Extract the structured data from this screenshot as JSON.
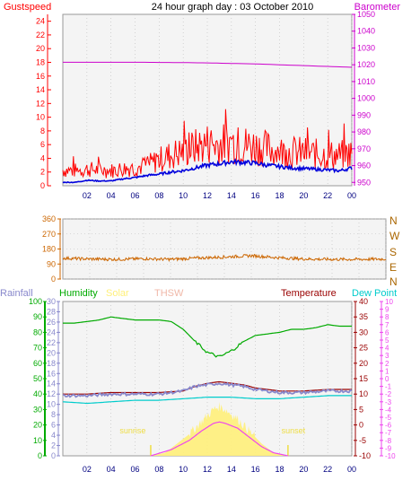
{
  "title": "24 hour graph day : 03 October 2010",
  "colors": {
    "gust": "#ff0000",
    "wind": "#0000dd",
    "baro": "#cc00cc",
    "dir": "#cc6600",
    "compass": "#aa6600",
    "humidity": "#00aa00",
    "solar": "#fff07a",
    "solar_text": "#eedd44",
    "thsw": "#f0b8a8",
    "temperature": "#990000",
    "dewpoint": "#00cccc",
    "rain": "#8888cc",
    "uv": "#ee44ee",
    "grid": "#bbbbbb",
    "plot_bg": "#f4f4f4"
  },
  "chart_data": [
    {
      "type": "line",
      "title": "24 hour graph day : 03 October 2010",
      "x_ticks": [
        "02",
        "04",
        "06",
        "08",
        "10",
        "12",
        "14",
        "16",
        "18",
        "20",
        "22",
        "00"
      ],
      "grid": true,
      "left_axis": {
        "label": "Gustspeed",
        "range": [
          0,
          25
        ],
        "ticks": [
          "0",
          "2",
          "4",
          "6",
          "8",
          "10",
          "12",
          "14",
          "16",
          "18",
          "20",
          "22",
          "24"
        ]
      },
      "right_axis": {
        "label": "Barometer",
        "range": [
          948,
          1050
        ],
        "ticks": [
          "950",
          "960",
          "970",
          "980",
          "990",
          "1000",
          "1010",
          "1020",
          "1030",
          "1040",
          "1050"
        ]
      },
      "series": [
        {
          "name": "Gustspeed",
          "axis": "left",
          "x": [
            0,
            1,
            2,
            3,
            4,
            5,
            6,
            7,
            8,
            9,
            10,
            11,
            12,
            13,
            14,
            15,
            16,
            17,
            18,
            19,
            20,
            21,
            22,
            23,
            24
          ],
          "values": [
            2.3,
            2.2,
            2.4,
            2.3,
            2.2,
            2.5,
            2.6,
            3.0,
            3.8,
            4.5,
            5.0,
            5.6,
            6.2,
            6.0,
            6.3,
            6.0,
            5.8,
            5.4,
            5.0,
            4.9,
            4.8,
            4.6,
            4.5,
            4.4,
            4.8
          ]
        },
        {
          "name": "Windspeed",
          "axis": "left",
          "x": [
            0,
            1,
            2,
            3,
            4,
            5,
            6,
            7,
            8,
            9,
            10,
            11,
            12,
            13,
            14,
            15,
            16,
            17,
            18,
            19,
            20,
            21,
            22,
            23,
            24
          ],
          "values": [
            0.5,
            0.5,
            0.8,
            0.7,
            0.7,
            1.0,
            1.2,
            1.5,
            1.7,
            2.0,
            2.2,
            2.6,
            3.0,
            3.2,
            3.5,
            3.4,
            3.3,
            3.0,
            2.8,
            2.6,
            2.5,
            2.4,
            2.3,
            2.2,
            2.6
          ]
        },
        {
          "name": "Barometer",
          "axis": "right",
          "x": [
            0,
            2,
            4,
            6,
            8,
            10,
            12,
            14,
            16,
            18,
            20,
            22,
            24
          ],
          "values": [
            1021.5,
            1021.5,
            1021.5,
            1021.5,
            1021.4,
            1021.3,
            1021.1,
            1020.8,
            1020.5,
            1020.0,
            1019.5,
            1019.0,
            1018.5
          ]
        }
      ]
    },
    {
      "type": "line",
      "x_ticks": [],
      "grid": true,
      "left_axis": {
        "range": [
          0,
          360
        ],
        "ticks": [
          "0",
          "90",
          "180",
          "270",
          "360"
        ]
      },
      "right_axis": {
        "ticks": [
          "N",
          "W",
          "S",
          "E",
          "N"
        ]
      },
      "series": [
        {
          "name": "Wind direction",
          "axis": "left",
          "x": [
            0,
            2,
            4,
            6,
            8,
            10,
            12,
            14,
            16,
            18,
            20,
            22,
            24
          ],
          "values": [
            125,
            120,
            118,
            122,
            118,
            126,
            132,
            140,
            128,
            120,
            118,
            118,
            120
          ]
        }
      ]
    },
    {
      "type": "area",
      "x_ticks": [
        "02",
        "04",
        "06",
        "08",
        "10",
        "12",
        "14",
        "16",
        "18",
        "20",
        "22",
        "00"
      ],
      "grid": true,
      "legend": [
        "Rainfall",
        "Humidity",
        "Solar",
        "THSW",
        "Temperature",
        "Dew Point"
      ],
      "axes": [
        {
          "label": "Rainfall",
          "side": "left",
          "range": [
            0,
            100
          ],
          "ticks": [
            "0",
            "10",
            "20",
            "30",
            "40",
            "50",
            "60",
            "70",
            "80",
            "90",
            "100"
          ]
        },
        {
          "side": "left",
          "range": [
            0,
            30
          ],
          "ticks": [
            "0",
            "2",
            "4",
            "6",
            "8",
            "10",
            "12",
            "14",
            "16",
            "18",
            "20",
            "22",
            "24",
            "26",
            "28",
            "30"
          ]
        },
        {
          "label": "Temperature",
          "side": "right",
          "range": [
            -10,
            40
          ],
          "ticks": [
            "-10",
            "-5",
            "0",
            "5",
            "10",
            "15",
            "20",
            "25",
            "30",
            "35",
            "40"
          ]
        },
        {
          "side": "right",
          "range": [
            -10,
            10
          ],
          "ticks": [
            "-10",
            "-9",
            "-8",
            "-7",
            "-6",
            "-5",
            "-4",
            "-3",
            "-2",
            "-1",
            "0",
            "1",
            "2",
            "3",
            "4",
            "5",
            "6",
            "7",
            "8",
            "9",
            "10"
          ]
        }
      ],
      "annotations": [
        "sunrise",
        "sunset"
      ],
      "sunrise_hour": 7.3,
      "sunset_hour": 18.7,
      "series": [
        {
          "name": "Humidity",
          "axis": "Rainfall",
          "x": [
            0,
            1,
            2,
            3,
            4,
            5,
            6,
            7,
            8,
            9,
            10,
            11,
            12,
            13,
            14,
            15,
            16,
            17,
            18,
            19,
            20,
            21,
            22,
            23,
            24
          ],
          "values": [
            86,
            86,
            87,
            88,
            90,
            89,
            88,
            88,
            88,
            87,
            82,
            74,
            67,
            64,
            68,
            74,
            78,
            79,
            80,
            82,
            82,
            83,
            85,
            84,
            84
          ]
        },
        {
          "name": "Temperature",
          "axis": "Temperature",
          "x": [
            0,
            2,
            4,
            6,
            8,
            10,
            11,
            12,
            13,
            14,
            15,
            16,
            17,
            18,
            20,
            22,
            24
          ],
          "values": [
            10,
            10,
            10.5,
            10.5,
            10.5,
            11,
            12.5,
            13.5,
            14,
            13.5,
            13,
            12,
            11.5,
            11,
            11,
            11.5,
            11.5
          ]
        },
        {
          "name": "THSW",
          "axis": "Temperature",
          "x": [
            0,
            2,
            4,
            6,
            8,
            10,
            11,
            12,
            13,
            14,
            15,
            16,
            17,
            18,
            20,
            22,
            24
          ],
          "values": [
            9.5,
            9.5,
            10,
            10,
            10,
            11,
            12.5,
            13,
            13.5,
            13,
            12.5,
            11.5,
            11,
            10.5,
            10.5,
            11,
            11
          ]
        },
        {
          "name": "Dew Point",
          "axis": "Temperature",
          "x": [
            0,
            2,
            4,
            6,
            8,
            10,
            12,
            14,
            16,
            18,
            20,
            22,
            24
          ],
          "values": [
            7.5,
            7,
            7.5,
            8,
            8,
            8.5,
            9,
            9,
            8.5,
            8.5,
            9,
            9.5,
            9.5
          ]
        },
        {
          "name": "Solar",
          "axis": "Temperature",
          "x": [
            7.3,
            8.5,
            9.5,
            10.5,
            11.5,
            12.5,
            13,
            13.5,
            14.5,
            15.5,
            16.5,
            17.5,
            18.7
          ],
          "values": [
            -10,
            -9,
            -6,
            -3,
            1,
            5,
            6,
            5,
            2,
            -2,
            -6,
            -9,
            -10
          ]
        },
        {
          "name": "UV",
          "axis": "Temperature",
          "x": [
            7.3,
            9,
            10.5,
            11.5,
            12.5,
            13,
            13.5,
            14.5,
            15.5,
            16.5,
            17.5,
            18.7
          ],
          "values": [
            -10,
            -8,
            -5,
            -2,
            0.5,
            1,
            0.5,
            -1,
            -4,
            -7,
            -9,
            -10
          ]
        }
      ]
    }
  ]
}
